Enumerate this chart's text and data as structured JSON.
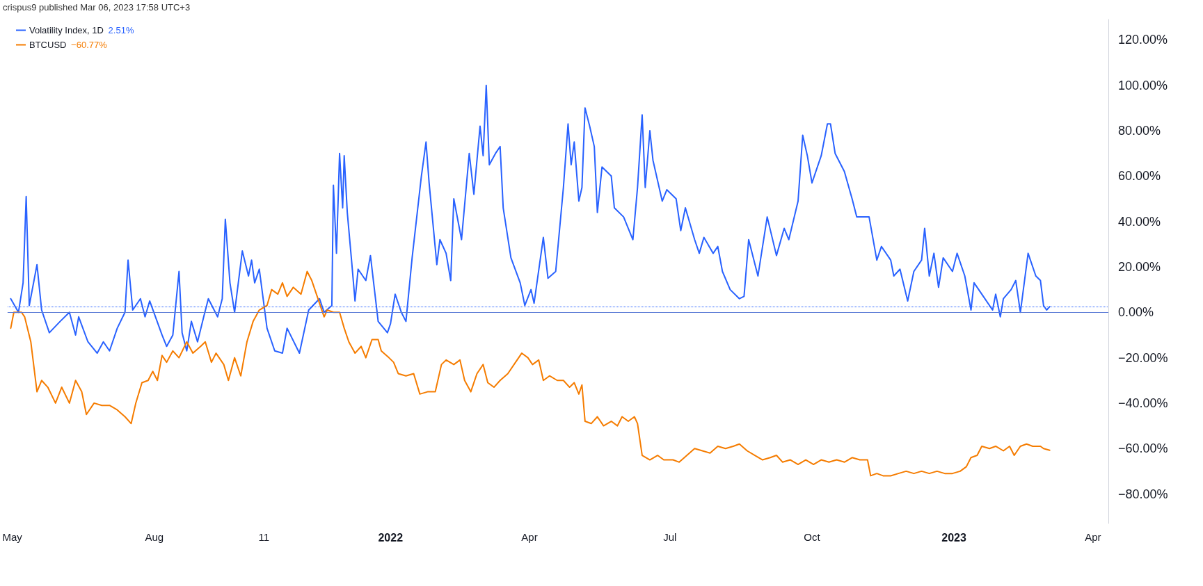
{
  "chart_data": {
    "type": "line",
    "annotations": [
      "crispus9 published Mar 06, 2023 17:58 UTC+3",
      "2.51%",
      "−60.77%"
    ],
    "series": [
      {
        "name": "Volatility Index, 1D",
        "color": "#2962ff",
        "x": [
          "2021-04-30",
          "2021-05-05",
          "2021-05-08",
          "2021-05-10",
          "2021-05-12",
          "2021-05-17",
          "2021-05-20",
          "2021-05-25",
          "2021-06-01",
          "2021-06-07",
          "2021-06-11",
          "2021-06-13",
          "2021-06-19",
          "2021-06-25",
          "2021-06-29",
          "2021-07-03",
          "2021-07-08",
          "2021-07-13",
          "2021-07-15",
          "2021-07-18",
          "2021-07-23",
          "2021-07-26",
          "2021-07-29",
          "2021-08-06",
          "2021-08-09",
          "2021-08-13",
          "2021-08-17",
          "2021-08-19",
          "2021-08-22",
          "2021-08-25",
          "2021-08-29",
          "2021-09-02",
          "2021-09-05",
          "2021-09-11",
          "2021-09-14",
          "2021-09-16",
          "2021-09-19",
          "2021-09-22",
          "2021-09-27",
          "2021-10-01",
          "2021-10-03",
          "2021-10-05",
          "2021-10-08",
          "2021-10-13",
          "2021-10-18",
          "2021-10-23",
          "2021-10-26",
          "2021-11-03",
          "2021-11-09",
          "2021-11-16",
          "2021-11-19",
          "2021-11-24",
          "2021-11-25",
          "2021-11-27",
          "2021-11-29",
          "2021-12-01",
          "2021-12-02",
          "2021-12-04",
          "2021-12-07",
          "2021-12-09",
          "2021-12-11",
          "2021-12-16",
          "2021-12-19",
          "2021-12-24",
          "2021-12-30",
          "2022-01-01",
          "2022-01-04",
          "2022-01-08",
          "2022-01-11",
          "2022-01-15",
          "2022-01-21",
          "2022-01-24",
          "2022-01-26",
          "2022-01-31",
          "2022-02-02",
          "2022-02-06",
          "2022-02-09",
          "2022-02-11",
          "2022-02-16",
          "2022-02-21",
          "2022-02-24",
          "2022-02-28",
          "2022-03-02",
          "2022-03-04",
          "2022-03-06",
          "2022-03-10",
          "2022-03-13",
          "2022-03-15",
          "2022-03-20",
          "2022-03-26",
          "2022-03-29",
          "2022-04-02",
          "2022-04-04",
          "2022-04-10",
          "2022-04-13",
          "2022-04-18",
          "2022-04-23",
          "2022-04-26",
          "2022-04-28",
          "2022-04-30",
          "2022-05-03",
          "2022-05-05",
          "2022-05-07",
          "2022-05-10",
          "2022-05-13",
          "2022-05-15",
          "2022-05-18",
          "2022-05-24",
          "2022-05-26",
          "2022-06-01",
          "2022-06-07",
          "2022-06-10",
          "2022-06-13",
          "2022-06-15",
          "2022-06-18",
          "2022-06-20",
          "2022-06-26",
          "2022-06-29",
          "2022-07-05",
          "2022-07-08",
          "2022-07-11",
          "2022-07-17",
          "2022-07-20",
          "2022-07-23",
          "2022-07-29",
          "2022-08-01",
          "2022-08-04",
          "2022-08-09",
          "2022-08-15",
          "2022-08-18",
          "2022-08-21",
          "2022-08-27",
          "2022-09-02",
          "2022-09-08",
          "2022-09-13",
          "2022-09-16",
          "2022-09-22",
          "2022-09-25",
          "2022-09-28",
          "2022-10-01",
          "2022-10-07",
          "2022-10-11",
          "2022-10-13",
          "2022-10-16",
          "2022-10-22",
          "2022-10-27",
          "2022-10-30",
          "2022-11-07",
          "2022-11-12",
          "2022-11-15",
          "2022-11-21",
          "2022-11-23",
          "2022-11-27",
          "2022-12-02",
          "2022-12-06",
          "2022-12-11",
          "2022-12-13",
          "2022-12-16",
          "2022-12-19",
          "2022-12-22",
          "2022-12-25",
          "2022-12-31",
          "2023-01-03",
          "2023-01-08",
          "2023-01-12",
          "2023-01-14",
          "2023-01-20",
          "2023-01-26",
          "2023-01-28",
          "2023-01-31",
          "2023-02-02",
          "2023-02-07",
          "2023-02-10",
          "2023-02-13",
          "2023-02-18",
          "2023-02-23",
          "2023-02-26",
          "2023-02-28",
          "2023-03-02",
          "2023-03-04"
        ],
        "values": [
          6,
          0,
          13,
          51,
          3,
          21,
          1,
          -9,
          -4,
          0,
          -10,
          -2,
          -13,
          -18,
          -13,
          -17,
          -7,
          0,
          23,
          1,
          6,
          -2,
          5,
          -10,
          -15,
          -10,
          18,
          -9,
          -17,
          -4,
          -13,
          -2,
          6,
          -2,
          6,
          41,
          13,
          0,
          27,
          16,
          23,
          13,
          19,
          -7,
          -17,
          -18,
          -7,
          -18,
          1,
          6,
          0,
          3,
          56,
          26,
          70,
          46,
          69,
          44,
          21,
          5,
          19,
          14,
          25,
          -4,
          -9,
          -5,
          8,
          0,
          -4,
          24,
          60,
          75,
          57,
          21,
          32,
          26,
          14,
          50,
          32,
          70,
          52,
          82,
          69,
          100,
          65,
          70,
          73,
          46,
          24,
          13,
          3,
          10,
          4,
          33,
          15,
          18,
          55,
          83,
          65,
          75,
          49,
          55,
          90,
          82,
          73,
          44,
          64,
          60,
          46,
          42,
          32,
          55,
          87,
          55,
          80,
          67,
          49,
          54,
          50,
          36,
          46,
          32,
          26,
          33,
          26,
          29,
          18,
          10,
          6,
          7,
          32,
          16,
          42,
          25,
          37,
          32,
          49,
          78,
          69,
          57,
          69,
          83,
          83,
          70,
          62,
          50,
          42,
          42,
          23,
          29,
          23,
          16,
          19,
          5,
          18,
          23,
          37,
          16,
          26,
          11,
          24,
          18,
          26,
          16,
          1,
          13,
          7,
          1,
          8,
          -2,
          6,
          10,
          14,
          0,
          26,
          16,
          14,
          3,
          1,
          2.51
        ]
      },
      {
        "name": "BTCUSD",
        "color": "#f57c00",
        "x": [
          "2021-04-30",
          "2021-05-02",
          "2021-05-07",
          "2021-05-09",
          "2021-05-13",
          "2021-05-17",
          "2021-05-20",
          "2021-05-24",
          "2021-05-29",
          "2021-06-02",
          "2021-06-07",
          "2021-06-11",
          "2021-06-15",
          "2021-06-18",
          "2021-06-23",
          "2021-06-28",
          "2021-07-03",
          "2021-07-08",
          "2021-07-13",
          "2021-07-17",
          "2021-07-20",
          "2021-07-24",
          "2021-07-28",
          "2021-07-31",
          "2021-08-03",
          "2021-08-06",
          "2021-08-09",
          "2021-08-13",
          "2021-08-17",
          "2021-08-22",
          "2021-08-26",
          "2021-08-31",
          "2021-09-03",
          "2021-09-07",
          "2021-09-10",
          "2021-09-15",
          "2021-09-18",
          "2021-09-22",
          "2021-09-26",
          "2021-09-30",
          "2021-10-04",
          "2021-10-08",
          "2021-10-13",
          "2021-10-16",
          "2021-10-20",
          "2021-10-23",
          "2021-10-26",
          "2021-10-30",
          "2021-11-04",
          "2021-11-08",
          "2021-11-11",
          "2021-11-15",
          "2021-11-19",
          "2021-11-21",
          "2021-11-25",
          "2021-11-29",
          "2021-12-02",
          "2021-12-05",
          "2021-12-09",
          "2021-12-13",
          "2021-12-16",
          "2021-12-20",
          "2021-12-24",
          "2021-12-26",
          "2021-12-31",
          "2022-01-03",
          "2022-01-06",
          "2022-01-11",
          "2022-01-16",
          "2022-01-20",
          "2022-01-25",
          "2022-01-30",
          "2022-02-03",
          "2022-02-06",
          "2022-02-11",
          "2022-02-15",
          "2022-02-18",
          "2022-02-22",
          "2022-02-26",
          "2022-03-02",
          "2022-03-05",
          "2022-03-09",
          "2022-03-13",
          "2022-03-18",
          "2022-03-23",
          "2022-03-27",
          "2022-03-31",
          "2022-04-03",
          "2022-04-07",
          "2022-04-10",
          "2022-04-14",
          "2022-04-19",
          "2022-04-23",
          "2022-04-27",
          "2022-04-30",
          "2022-05-03",
          "2022-05-05",
          "2022-05-07",
          "2022-05-11",
          "2022-05-15",
          "2022-05-19",
          "2022-05-24",
          "2022-05-28",
          "2022-05-31",
          "2022-06-04",
          "2022-06-08",
          "2022-06-10",
          "2022-06-13",
          "2022-06-18",
          "2022-06-23",
          "2022-06-27",
          "2022-07-03",
          "2022-07-07",
          "2022-07-12",
          "2022-07-17",
          "2022-07-22",
          "2022-07-27",
          "2022-08-01",
          "2022-08-06",
          "2022-08-11",
          "2022-08-15",
          "2022-08-20",
          "2022-08-25",
          "2022-08-30",
          "2022-09-04",
          "2022-09-08",
          "2022-09-12",
          "2022-09-17",
          "2022-09-22",
          "2022-09-27",
          "2022-10-02",
          "2022-10-07",
          "2022-10-12",
          "2022-10-17",
          "2022-10-22",
          "2022-10-27",
          "2022-11-01",
          "2022-11-06",
          "2022-11-08",
          "2022-11-12",
          "2022-11-16",
          "2022-11-21",
          "2022-11-26",
          "2022-12-01",
          "2022-12-06",
          "2022-12-11",
          "2022-12-16",
          "2022-12-21",
          "2022-12-26",
          "2022-12-31",
          "2023-01-05",
          "2023-01-09",
          "2023-01-12",
          "2023-01-16",
          "2023-01-19",
          "2023-01-24",
          "2023-01-28",
          "2023-02-02",
          "2023-02-06",
          "2023-02-09",
          "2023-02-13",
          "2023-02-17",
          "2023-02-21",
          "2023-02-26",
          "2023-02-28",
          "2023-03-04"
        ],
        "values": [
          -7,
          0,
          0,
          -2,
          -13,
          -35,
          -30,
          -33,
          -40,
          -33,
          -40,
          -30,
          -35,
          -45,
          -40,
          -41,
          -41,
          -43,
          -46,
          -49,
          -40,
          -31,
          -30,
          -26,
          -30,
          -19,
          -22,
          -17,
          -20,
          -13,
          -18,
          -15,
          -13,
          -22,
          -18,
          -23,
          -30,
          -20,
          -28,
          -13,
          -4,
          1,
          3,
          10,
          8,
          13,
          7,
          11,
          8,
          18,
          14,
          6,
          -2,
          1,
          0,
          0,
          -7,
          -13,
          -18,
          -15,
          -20,
          -12,
          -12,
          -17,
          -20,
          -22,
          -27,
          -28,
          -27,
          -36,
          -35,
          -35,
          -23,
          -21,
          -23,
          -21,
          -30,
          -35,
          -27,
          -23,
          -31,
          -33,
          -30,
          -27,
          -22,
          -18,
          -20,
          -23,
          -21,
          -30,
          -28,
          -30,
          -30,
          -33,
          -31,
          -36,
          -32,
          -48,
          -49,
          -46,
          -50,
          -48,
          -50,
          -46,
          -48,
          -46,
          -49,
          -63,
          -65,
          -63,
          -65,
          -65,
          -66,
          -63,
          -60,
          -61,
          -62,
          -59,
          -60,
          -59,
          -58,
          -61,
          -63,
          -65,
          -64,
          -63,
          -66,
          -65,
          -67,
          -65,
          -67,
          -65,
          -66,
          -65,
          -66,
          -64,
          -65,
          -65,
          -72,
          -71,
          -72,
          -72,
          -71,
          -70,
          -71,
          -70,
          -71,
          -70,
          -71,
          -71,
          -70,
          -68,
          -64,
          -63,
          -59,
          -60,
          -59,
          -61,
          -59,
          -63,
          -59,
          -58,
          -59,
          -59,
          -60,
          -60.77
        ]
      }
    ],
    "xlim": [
      "2021-04-28",
      "2023-04-11"
    ],
    "xticks": [
      {
        "value": "2021-05-01",
        "label": "May"
      },
      {
        "value": "2021-08-01",
        "label": "Aug"
      },
      {
        "value": "2021-10-11",
        "label": "11"
      },
      {
        "value": "2022-01-01",
        "label": "2022"
      },
      {
        "value": "2022-04-01",
        "label": "Apr"
      },
      {
        "value": "2022-07-01",
        "label": "Jul"
      },
      {
        "value": "2022-10-01",
        "label": "Oct"
      },
      {
        "value": "2023-01-01",
        "label": "2023"
      },
      {
        "value": "2023-04-01",
        "label": "Apr"
      }
    ],
    "ylim": [
      -93,
      129
    ],
    "yticks": [
      {
        "value": -80,
        "label": "−80.00%"
      },
      {
        "value": -60,
        "label": "−60.00%"
      },
      {
        "value": -40,
        "label": "−40.00%"
      },
      {
        "value": -20,
        "label": "−20.00%"
      },
      {
        "value": 0,
        "label": "0.00%"
      },
      {
        "value": 20,
        "label": "20.00%"
      },
      {
        "value": 40,
        "label": "40.00%"
      },
      {
        "value": 60,
        "label": "60.00%"
      },
      {
        "value": 80,
        "label": "80.00%"
      },
      {
        "value": 100,
        "label": "100.00%"
      },
      {
        "value": 120,
        "label": "120.00%"
      }
    ],
    "ref_lines": [
      {
        "axis": "y",
        "value": 2.51,
        "color": "#2962ff",
        "line_style": "dotted"
      },
      {
        "axis": "y",
        "value": 0,
        "color": "#5b7bd6",
        "line_style": "solid"
      }
    ],
    "grid": false,
    "legend": "top left",
    "marker": "none",
    "line_style": "solid"
  }
}
